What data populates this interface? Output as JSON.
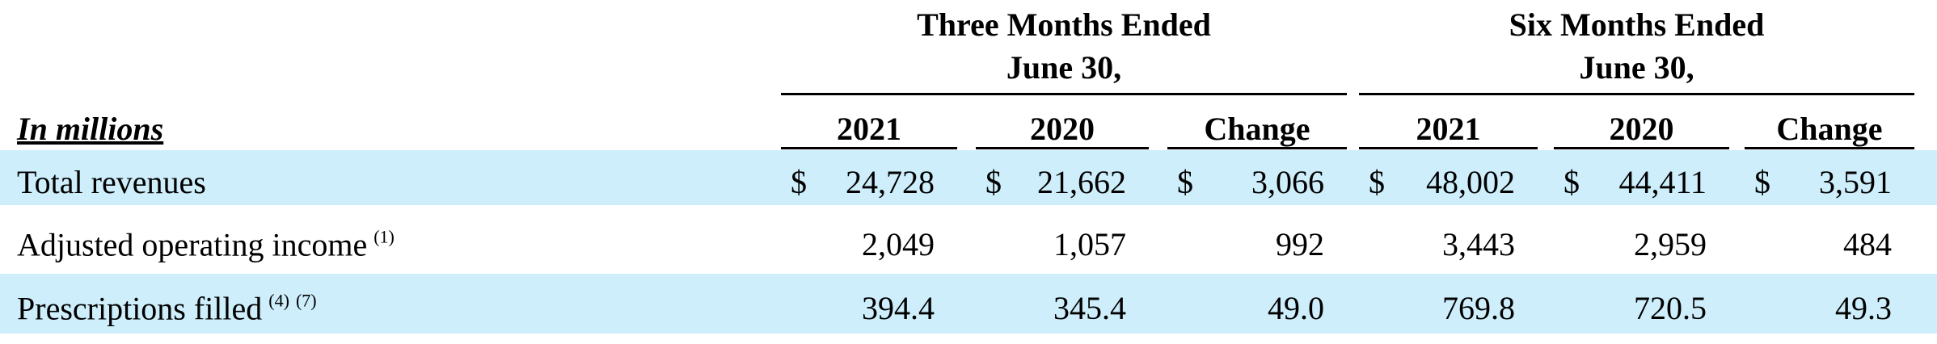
{
  "header": {
    "row_label_header": "In millions",
    "groups": [
      {
        "title": "Three Months Ended",
        "subtitle": "June 30,"
      },
      {
        "title": "Six Months Ended",
        "subtitle": "June 30,"
      }
    ],
    "columns": [
      "2021",
      "2020",
      "Change",
      "2021",
      "2020",
      "Change"
    ]
  },
  "table": {
    "rows": [
      {
        "label": "Total revenues",
        "currency": "$",
        "cells": [
          "24,728",
          "21,662",
          "3,066",
          "48,002",
          "44,411",
          "3,591"
        ]
      },
      {
        "label": "Adjusted operating income",
        "footnotes": [
          "(1)"
        ],
        "cells": [
          "2,049",
          "1,057",
          "992",
          "3,443",
          "2,959",
          "484"
        ]
      },
      {
        "label": "Prescriptions filled",
        "footnotes": [
          "(4)",
          "(7)"
        ],
        "cells": [
          "394.4",
          "345.4",
          "49.0",
          "769.8",
          "720.5",
          "49.3"
        ]
      }
    ]
  }
}
